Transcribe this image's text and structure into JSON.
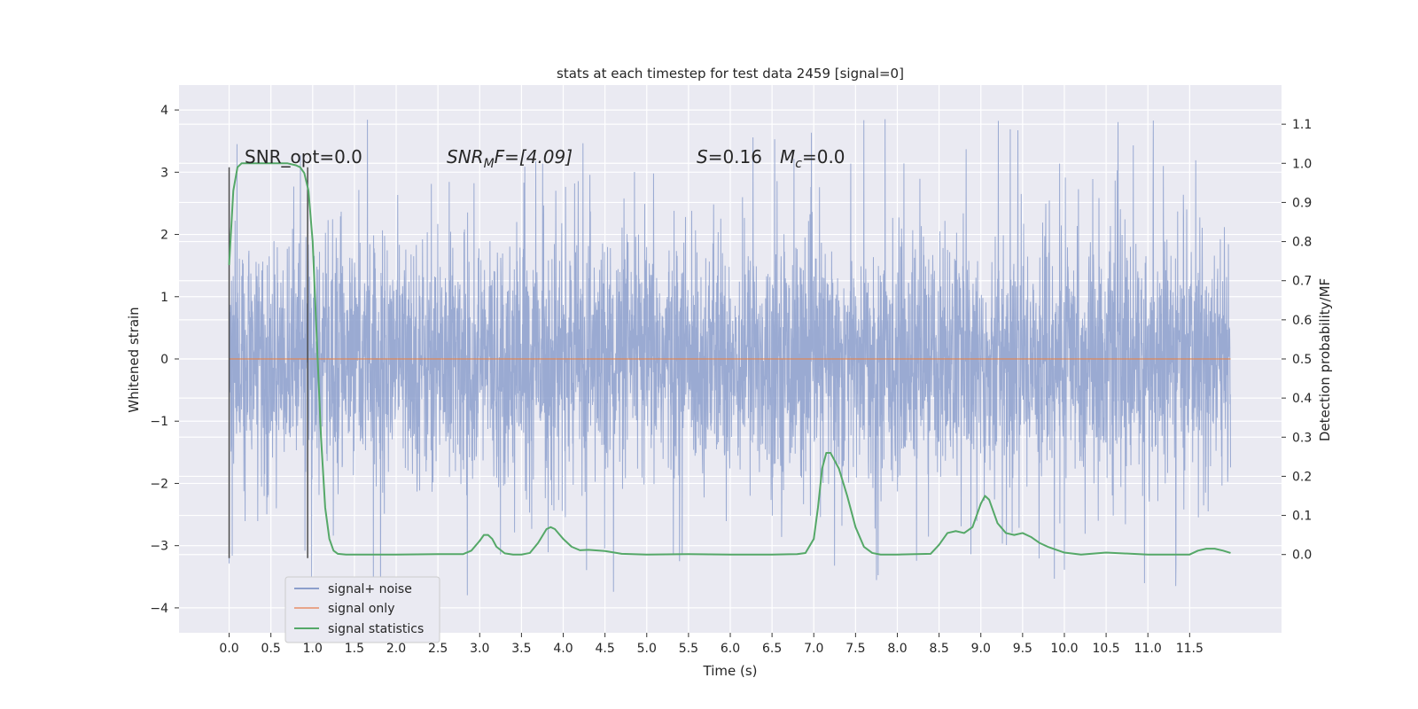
{
  "chart_data": {
    "type": "line",
    "title": "stats at each timestep for test data 2459 [signal=0]",
    "xlabel": "Time (s)",
    "ylabel": "Whitened strain",
    "ylabel_right": "Detection probability/MF",
    "xlim": [
      -0.6,
      12.6
    ],
    "ylim": [
      -4.4,
      4.4
    ],
    "ylim_right": [
      -0.2,
      1.2
    ],
    "x_ticks": [
      "0.0",
      "0.5",
      "1.0",
      "1.5",
      "2.0",
      "2.5",
      "3.0",
      "3.5",
      "4.0",
      "4.5",
      "5.0",
      "5.5",
      "6.0",
      "6.5",
      "7.0",
      "7.5",
      "8.0",
      "8.5",
      "9.0",
      "9.5",
      "10.0",
      "10.5",
      "11.0",
      "11.5"
    ],
    "y_ticks": [
      "4",
      "3",
      "2",
      "1",
      "0",
      "−1",
      "−2",
      "−3",
      "−4"
    ],
    "y_ticks_right": [
      "1.1",
      "1.0",
      "0.9",
      "0.8",
      "0.7",
      "0.6",
      "0.5",
      "0.4",
      "0.3",
      "0.2",
      "0.1",
      "0.0"
    ],
    "grid": true,
    "annotations": {
      "snr_opt": "SNR_opt=0.0",
      "snr_mf_sym": "SNR",
      "snr_mf_sub": "M",
      "snr_mf_rest": "F=[4.09]",
      "s_sym": "S",
      "s_val": "=0.16",
      "mc_sym": "M",
      "mc_sub": "c",
      "mc_val": "=0.0"
    },
    "markers": [
      0.0,
      0.94
    ],
    "legend": {
      "position": "lower-left",
      "entries": [
        {
          "label": "signal+ noise",
          "color": "#8c9fcc"
        },
        {
          "label": "signal only",
          "color": "#dd8452"
        },
        {
          "label": "signal statistics",
          "color": "#55a868"
        }
      ]
    },
    "series": [
      {
        "name": "signal+ noise",
        "color": "#8c9fcc",
        "x_range": [
          0.0,
          11.99
        ],
        "amplitude": "approx ±1.7 core, peaks to 3.9 / -4.1"
      },
      {
        "name": "signal only",
        "color": "#dd8452",
        "x": [
          0.0,
          11.99
        ],
        "y": [
          0.0,
          0.0
        ]
      },
      {
        "name": "signal statistics",
        "color": "#55a868",
        "axis": "right",
        "x": [
          0.0,
          0.05,
          0.1,
          0.15,
          0.2,
          0.3,
          0.4,
          0.5,
          0.6,
          0.7,
          0.8,
          0.85,
          0.9,
          0.95,
          1.0,
          1.05,
          1.1,
          1.15,
          1.2,
          1.25,
          1.3,
          1.4,
          1.5,
          2.0,
          2.5,
          2.8,
          2.9,
          3.0,
          3.05,
          3.1,
          3.15,
          3.2,
          3.3,
          3.4,
          3.5,
          3.6,
          3.7,
          3.8,
          3.85,
          3.9,
          4.0,
          4.1,
          4.2,
          4.3,
          4.5,
          4.7,
          5.0,
          5.5,
          6.0,
          6.5,
          6.8,
          6.9,
          7.0,
          7.05,
          7.1,
          7.15,
          7.2,
          7.3,
          7.4,
          7.5,
          7.6,
          7.7,
          7.8,
          8.0,
          8.4,
          8.5,
          8.6,
          8.7,
          8.8,
          8.9,
          9.0,
          9.05,
          9.1,
          9.2,
          9.3,
          9.4,
          9.5,
          9.6,
          9.7,
          9.8,
          10.0,
          10.2,
          10.5,
          11.0,
          11.5,
          11.6,
          11.7,
          11.8,
          11.9,
          11.99
        ],
        "y": [
          0.74,
          0.93,
          0.99,
          1.0,
          1.0,
          1.0,
          1.0,
          1.0,
          1.0,
          1.0,
          0.995,
          0.99,
          0.975,
          0.93,
          0.8,
          0.55,
          0.3,
          0.12,
          0.04,
          0.01,
          0.002,
          0.0,
          0.0,
          0.0,
          0.001,
          0.001,
          0.01,
          0.035,
          0.05,
          0.05,
          0.04,
          0.02,
          0.003,
          0.0,
          0.0,
          0.004,
          0.03,
          0.065,
          0.07,
          0.065,
          0.04,
          0.02,
          0.011,
          0.012,
          0.009,
          0.002,
          0.0,
          0.001,
          0.0,
          0.0,
          0.001,
          0.004,
          0.04,
          0.12,
          0.22,
          0.26,
          0.26,
          0.22,
          0.15,
          0.07,
          0.02,
          0.004,
          0.0,
          0.0,
          0.002,
          0.025,
          0.055,
          0.06,
          0.055,
          0.07,
          0.13,
          0.15,
          0.14,
          0.08,
          0.055,
          0.05,
          0.055,
          0.045,
          0.03,
          0.02,
          0.005,
          0.0,
          0.005,
          0.0,
          0.0,
          0.01,
          0.015,
          0.015,
          0.01,
          0.004
        ]
      }
    ]
  }
}
